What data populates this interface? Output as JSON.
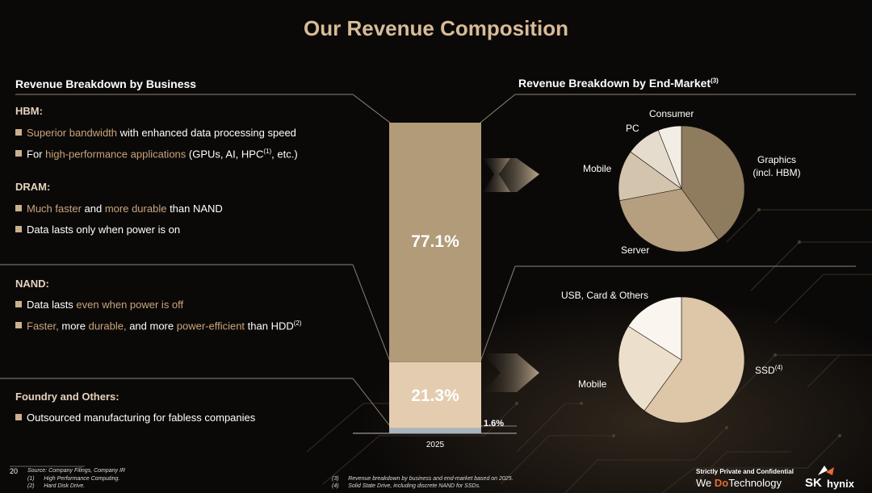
{
  "page": {
    "title": "Our Revenue Composition",
    "page_number": "20"
  },
  "left": {
    "title": "Revenue Breakdown by Business",
    "sections": [
      {
        "head": "HBM:",
        "bullets": [
          [
            {
              "t": "Superior bandwidth",
              "h": true
            },
            {
              "t": " with enhanced data processing speed"
            }
          ],
          [
            {
              "t": "For "
            },
            {
              "t": "high-performance applications",
              "h": true
            },
            {
              "t": " (GPUs, AI, HPC"
            },
            {
              "t": "(1)",
              "sup": true
            },
            {
              "t": ", etc.)"
            }
          ]
        ]
      },
      {
        "head": "DRAM:",
        "bullets": [
          [
            {
              "t": "Much faster",
              "h": true
            },
            {
              "t": " and "
            },
            {
              "t": "more durable",
              "h": true
            },
            {
              "t": " than NAND"
            }
          ],
          [
            {
              "t": "Data lasts only when power is on"
            }
          ]
        ]
      },
      {
        "head": "NAND:",
        "bullets": [
          [
            {
              "t": "Data lasts "
            },
            {
              "t": "even when power is off",
              "h": true
            }
          ],
          [
            {
              "t": "Faster,",
              "h": true
            },
            {
              "t": " more "
            },
            {
              "t": "durable,",
              "h": true
            },
            {
              "t": " and more "
            },
            {
              "t": "power-efficient",
              "h": true
            },
            {
              "t": " than HDD"
            },
            {
              "t": "(2)",
              "sup": true
            }
          ]
        ]
      },
      {
        "head": "Foundry and Others:",
        "bullets": [
          [
            {
              "t": "Outsourced manufacturing for fabless companies"
            }
          ]
        ]
      }
    ]
  },
  "right": {
    "title": "Revenue Breakdown by End-Market",
    "title_sup": "(3)"
  },
  "chart_data": [
    {
      "type": "bar",
      "stacked": true,
      "categories": [
        "2025"
      ],
      "series": [
        {
          "name": "",
          "values": [
            1.6
          ],
          "label": "1.6%",
          "color": "#a6b4c2"
        },
        {
          "name": "",
          "values": [
            21.3
          ],
          "label": "21.3%",
          "color": "#e3ccaf"
        },
        {
          "name": "",
          "values": [
            77.1
          ],
          "label": "77.1%",
          "color": "#b19b79"
        }
      ],
      "ylim": [
        0,
        100
      ]
    },
    {
      "type": "pie",
      "labels": [
        "Graphics\n(incl. HBM)",
        "Server",
        "Mobile",
        "PC",
        "Consumer"
      ],
      "values": [
        40,
        32,
        13,
        9,
        6
      ],
      "colors": [
        "#8f7c5f",
        "#b59f7f",
        "#d3c4ae",
        "#e6dcce",
        "#f3eee5"
      ]
    },
    {
      "type": "pie",
      "labels": [
        "SSD",
        "Mobile",
        "USB, Card & Others"
      ],
      "labels_sup": [
        "(4)",
        "",
        ""
      ],
      "values": [
        60,
        24,
        16
      ],
      "colors": [
        "#ddc7a8",
        "#ece0cd",
        "#faf5ee"
      ]
    }
  ],
  "footnotes": {
    "left": [
      "Source: Company Filings, Company IR",
      "(1)      High Performance Computing.",
      "(2)      Hard Disk Drive."
    ],
    "right": [
      "(3)      Revenue breakdown by business and end-market based on 2025.",
      "(4)      Solid State Drive, including discrete NAND for SSDs."
    ]
  },
  "brand": {
    "confidential": "Strictly Private and Confidential",
    "slogan_1": "We ",
    "slogan_do": "Do",
    "slogan_2": "Technology",
    "logo_sk": "SK",
    "logo_hynix": "hynix",
    "accent": "#e36b35"
  }
}
